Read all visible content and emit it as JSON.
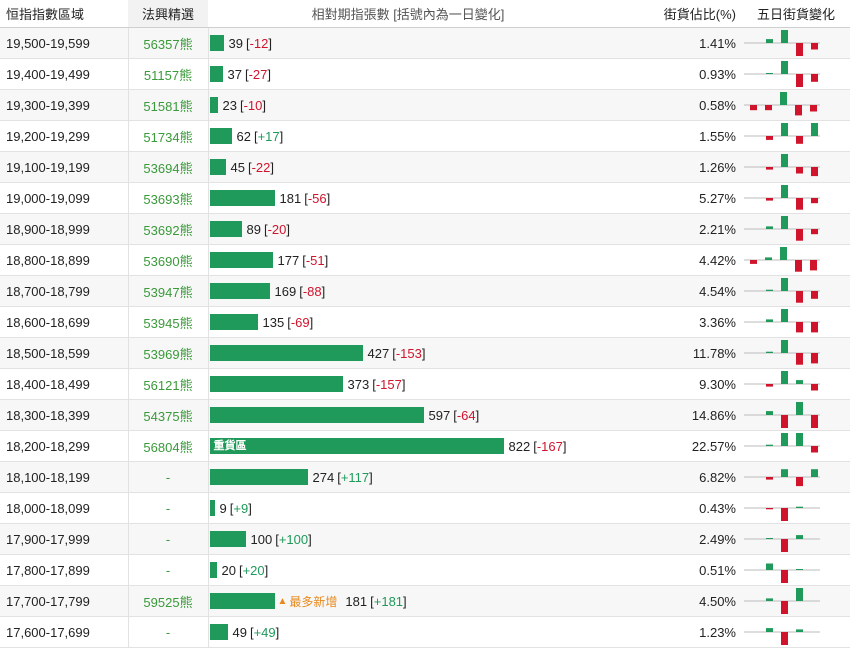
{
  "header": {
    "range": "恒指指數區域",
    "warrant": "法興精選",
    "oi": "相對期指張數 [括號內為一日變化]",
    "pct": "街貨佔比(%)",
    "trend": "五日街貨變化"
  },
  "colors": {
    "bar": "#1f9a5a",
    "up": "#1f9a5a",
    "down": "#d0142c",
    "hot": "#e8891c"
  },
  "rows": [
    {
      "range": "19,500-19,599",
      "warrant": "56357熊",
      "oi": "39",
      "chg": "-12",
      "pct": "1.41%",
      "trend": [
        0.3,
        1.0,
        -1.0,
        -0.5
      ]
    },
    {
      "range": "19,400-19,499",
      "warrant": "51157熊",
      "oi": "37",
      "chg": "-27",
      "pct": "0.93%",
      "trend": [
        0,
        1.0,
        -1.0,
        -0.6
      ]
    },
    {
      "range": "19,300-19,399",
      "warrant": "51581熊",
      "oi": "23",
      "chg": "-10",
      "pct": "0.58%",
      "trend": [
        -0.4,
        -0.4,
        1.0,
        -0.8,
        -0.5
      ]
    },
    {
      "range": "19,200-19,299",
      "warrant": "51734熊",
      "oi": "62",
      "chg": "+17",
      "pct": "1.55%",
      "trend": [
        -0.3,
        1.0,
        -0.6,
        1.0
      ]
    },
    {
      "range": "19,100-19,199",
      "warrant": "53694熊",
      "oi": "45",
      "chg": "-22",
      "pct": "1.26%",
      "trend": [
        -0.2,
        1.0,
        -0.5,
        -0.7
      ]
    },
    {
      "range": "19,000-19,099",
      "warrant": "53693熊",
      "oi": "181",
      "chg": "-56",
      "pct": "5.27%",
      "trend": [
        -0.2,
        1.0,
        -0.9,
        -0.4
      ]
    },
    {
      "range": "18,900-18,999",
      "warrant": "53692熊",
      "oi": "89",
      "chg": "-20",
      "pct": "2.21%",
      "trend": [
        0.2,
        1.0,
        -0.9,
        -0.4
      ]
    },
    {
      "range": "18,800-18,899",
      "warrant": "53690熊",
      "oi": "177",
      "chg": "-51",
      "pct": "4.42%",
      "trend": [
        -0.3,
        0.2,
        1.0,
        -0.9,
        -0.8
      ]
    },
    {
      "range": "18,700-18,799",
      "warrant": "53947熊",
      "oi": "169",
      "chg": "-88",
      "pct": "4.54%",
      "trend": [
        0.1,
        1.0,
        -0.9,
        -0.6
      ]
    },
    {
      "range": "18,600-18,699",
      "warrant": "53945熊",
      "oi": "135",
      "chg": "-69",
      "pct": "3.36%",
      "trend": [
        0.2,
        1.0,
        -0.8,
        -0.8
      ]
    },
    {
      "range": "18,500-18,599",
      "warrant": "53969熊",
      "oi": "427",
      "chg": "-153",
      "pct": "11.78%",
      "trend": [
        0.1,
        1.0,
        -0.9,
        -0.8
      ]
    },
    {
      "range": "18,400-18,499",
      "warrant": "56121熊",
      "oi": "373",
      "chg": "-157",
      "pct": "9.30%",
      "trend": [
        -0.2,
        1.0,
        0.3,
        -0.5
      ]
    },
    {
      "range": "18,300-18,399",
      "warrant": "54375熊",
      "oi": "597",
      "chg": "-64",
      "pct": "14.86%",
      "trend": [
        0.3,
        -1.0,
        1.0,
        -1.0
      ]
    },
    {
      "range": "18,200-18,299",
      "warrant": "56804熊",
      "oi": "822",
      "chg": "-167",
      "pct": "22.57%",
      "trend": [
        0.1,
        1.0,
        1.0,
        -0.5
      ],
      "barlabel": "重貨區"
    },
    {
      "range": "18,100-18,199",
      "warrant": "-",
      "oi": "274",
      "chg": "+117",
      "pct": "6.82%",
      "trend": [
        -0.2,
        0.6,
        -0.7,
        0.6
      ]
    },
    {
      "range": "18,000-18,099",
      "warrant": "-",
      "oi": "9",
      "chg": "+9",
      "pct": "0.43%",
      "trend": [
        -0.1,
        -1.0,
        0.1
      ]
    },
    {
      "range": "17,900-17,999",
      "warrant": "-",
      "oi": "100",
      "chg": "+100",
      "pct": "2.49%",
      "trend": [
        0,
        -1.0,
        0.3
      ]
    },
    {
      "range": "17,800-17,899",
      "warrant": "-",
      "oi": "20",
      "chg": "+20",
      "pct": "0.51%",
      "trend": [
        0.5,
        -1.0,
        0
      ]
    },
    {
      "range": "17,700-17,799",
      "warrant": "59525熊",
      "oi": "181",
      "chg": "+181",
      "pct": "4.50%",
      "trend": [
        0.2,
        -1.0,
        1.0
      ],
      "hot": "最多新增"
    },
    {
      "range": "17,600-17,699",
      "warrant": "-",
      "oi": "49",
      "chg": "+49",
      "pct": "1.23%",
      "trend": [
        0.3,
        -1.0,
        0.2
      ]
    }
  ]
}
